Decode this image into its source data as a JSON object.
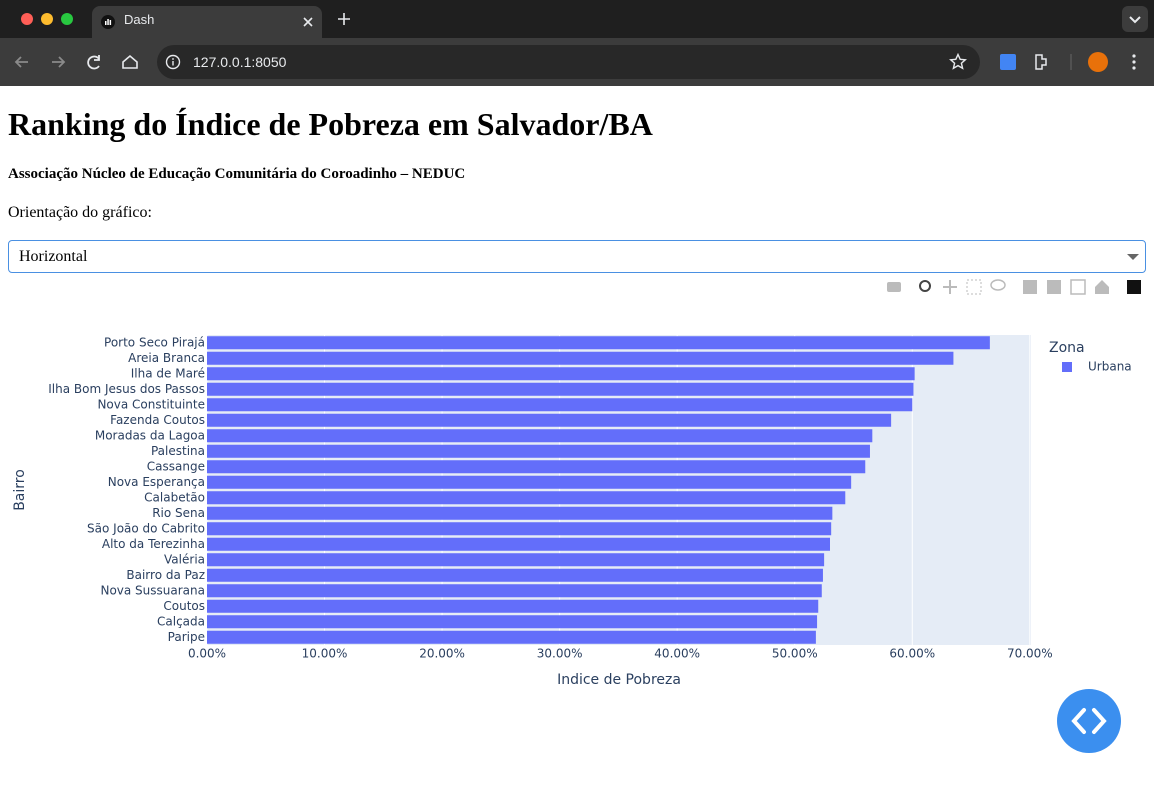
{
  "browser": {
    "tab_title": "Dash",
    "url": "127.0.0.1:8050"
  },
  "page": {
    "title": "Ranking do Índice de Pobreza em Salvador/BA",
    "subtitle": "Associação Núcleo de Educação Comunitária do Coroadinho – NEDUC",
    "dropdown_label": "Orientação do gráfico:",
    "dropdown_value": "Horizontal"
  },
  "chart_data": {
    "type": "barh",
    "x_label": "Indice de Pobreza",
    "y_label": "Bairro",
    "legend_title": "Zona",
    "categories": [
      "Porto Seco Pirajá",
      "Areia Branca",
      "Ilha de Maré",
      "Ilha Bom Jesus dos Passos",
      "Nova Constituinte",
      "Fazenda Coutos",
      "Moradas da Lagoa",
      "Palestina",
      "Cassange",
      "Nova Esperança",
      "Calabetão",
      "Rio Sena",
      "São João do Cabrito",
      "Alto da Terezinha",
      "Valéria",
      "Bairro da Paz",
      "Nova Sussuarana",
      "Coutos",
      "Calçada",
      "Paripe"
    ],
    "series": [
      {
        "name": "Urbana",
        "color": "#636efa",
        "values": [
          66.6,
          63.5,
          60.2,
          60.1,
          60.0,
          58.2,
          56.6,
          56.4,
          56.0,
          54.8,
          54.3,
          53.2,
          53.1,
          53.0,
          52.5,
          52.4,
          52.3,
          52.0,
          51.9,
          51.8
        ]
      }
    ],
    "xlim": [
      0,
      70.1
    ],
    "xticks": [
      {
        "value": 0,
        "label": "0.00%"
      },
      {
        "value": 10,
        "label": "10.00%"
      },
      {
        "value": 20,
        "label": "20.00%"
      },
      {
        "value": 30,
        "label": "30.00%"
      },
      {
        "value": 40,
        "label": "40.00%"
      },
      {
        "value": 50,
        "label": "50.00%"
      },
      {
        "value": 60,
        "label": "60.00%"
      },
      {
        "value": 70,
        "label": "70.00%"
      }
    ],
    "grid": true
  }
}
